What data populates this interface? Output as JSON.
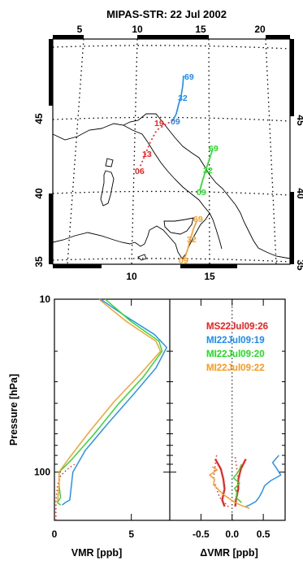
{
  "colors": {
    "MS": "#ff1a1a",
    "MI19": "#1a8cff",
    "MI20": "#22dd22",
    "MI22": "#ff9922"
  },
  "map": {
    "title": "MIPAS-STR: 22 Jul 2002",
    "lon_ticks_top": [
      "5",
      "10",
      "15",
      "20"
    ],
    "lon_ticks_bottom": [
      "10",
      "15"
    ],
    "lat_ticks_left": [
      "35",
      "40",
      "45"
    ],
    "lat_ticks_right": [
      "35",
      "40",
      "45"
    ],
    "annotations": [
      {
        "text": "69",
        "color_key": "MI19"
      },
      {
        "text": "32",
        "color_key": "MI19"
      },
      {
        "text": "09",
        "color_key": "MI19"
      },
      {
        "text": "19",
        "color_key": "MS"
      },
      {
        "text": "13",
        "color_key": "MS"
      },
      {
        "text": "06",
        "color_key": "MS"
      },
      {
        "text": "69",
        "color_key": "MI20"
      },
      {
        "text": "32",
        "color_key": "MI20"
      },
      {
        "text": "09",
        "color_key": "MI20"
      },
      {
        "text": "69",
        "color_key": "MI22"
      },
      {
        "text": "32",
        "color_key": "MI22"
      },
      {
        "text": "09",
        "color_key": "MI22"
      }
    ]
  },
  "chart_data": [
    {
      "type": "line",
      "panel": "left",
      "xlabel": "VMR [ppb]",
      "ylabel": "Pressure [hPa]",
      "xlim": [
        0,
        7.5
      ],
      "ylim": [
        190,
        10
      ],
      "y_scale": "log",
      "x_ticks": [
        "0",
        "5"
      ],
      "y_ticks": [
        "10",
        "100"
      ],
      "series": [
        {
          "color_key": "MS",
          "style": "dotted",
          "x": [
            0.1,
            0.1,
            0.1,
            0.2,
            0.4,
            0.8,
            1.3
          ],
          "y": [
            190,
            170,
            145,
            120,
            105,
            97,
            90
          ]
        },
        {
          "color_key": "MI19",
          "style": "solid",
          "x": [
            3.0,
            4.6,
            6.5,
            7.3,
            6.6,
            5.2,
            3.5,
            2.0,
            1.2,
            1.0,
            0.7,
            0.5
          ],
          "y": [
            10,
            12.5,
            16,
            19,
            25,
            35,
            52,
            75,
            100,
            145,
            150,
            155
          ]
        },
        {
          "color_key": "MI20",
          "style": "solid",
          "x": [
            3.3,
            5.0,
            6.8,
            7.0,
            5.8,
            4.2,
            2.6,
            1.1,
            0.3,
            0.3,
            0.4,
            0.2,
            0.4
          ],
          "y": [
            10,
            13.5,
            17.5,
            20,
            28,
            40,
            60,
            85,
            100,
            120,
            140,
            150,
            155
          ]
        },
        {
          "color_key": "MI22",
          "style": "solid",
          "x": [
            2.9,
            4.7,
            6.6,
            6.9,
            5.6,
            3.9,
            2.3,
            1.0,
            0.3,
            0.3,
            0.2
          ],
          "y": [
            10,
            13.5,
            17.5,
            20,
            27,
            39,
            58,
            82,
            100,
            120,
            150
          ]
        }
      ]
    },
    {
      "type": "line",
      "panel": "right",
      "xlabel": "ΔVMR [ppb]",
      "xlim": [
        -1.0,
        0.85
      ],
      "ylim": [
        190,
        10
      ],
      "y_scale": "log",
      "x_ticks": [
        "-0.5",
        "0.0",
        "0.5"
      ],
      "legend": [
        "MS22Jul09:26",
        "MI22Jul09:19",
        "MI22Jul09:20",
        "MI22Jul09:22"
      ],
      "legend_keys": [
        "MS",
        "MI19",
        "MI20",
        "MI22"
      ],
      "legend_position": "top-right",
      "series": [
        {
          "color_key": "MS",
          "style": "dotted",
          "x": [
            -0.25,
            -0.3,
            -0.2,
            -0.05
          ],
          "y": [
            80,
            110,
            140,
            160
          ]
        },
        {
          "color_key": "MS",
          "style": "dotted",
          "x": [
            0.05,
            0.1,
            0.05
          ],
          "y": [
            82,
            110,
            155
          ]
        },
        {
          "color_key": "MS",
          "style": "solid",
          "x": [
            -0.27,
            -0.18,
            -0.14,
            -0.12,
            -0.16,
            -0.12
          ],
          "y": [
            84,
            96,
            110,
            125,
            145,
            158
          ]
        },
        {
          "color_key": "MS",
          "style": "solid",
          "x": [
            0.22,
            0.14,
            0.1,
            0.1,
            0.06,
            0.05
          ],
          "y": [
            84,
            96,
            110,
            125,
            145,
            158
          ]
        },
        {
          "color_key": "MI19",
          "style": "solid",
          "x": [
            0.75,
            0.65,
            0.72,
            0.78,
            0.62,
            0.52,
            0.48,
            0.43,
            0.38,
            0.32,
            0.28,
            0.22
          ],
          "y": [
            80,
            88,
            96,
            104,
            112,
            120,
            130,
            140,
            148,
            152,
            155,
            158
          ]
        },
        {
          "color_key": "MI20",
          "style": "solid",
          "x": [
            0.15,
            0.12,
            0.08,
            0.02,
            0.12,
            0.04,
            0.08,
            0.06,
            0.15
          ],
          "y": [
            90,
            96,
            102,
            108,
            116,
            124,
            132,
            140,
            150
          ]
        },
        {
          "color_key": "MI22",
          "style": "solid",
          "x": [
            -0.32,
            -0.24,
            -0.36,
            -0.28,
            -0.3,
            -0.22,
            -0.15,
            -0.05,
            0.05,
            0.15,
            0.28
          ],
          "y": [
            93,
            97,
            104,
            110,
            118,
            126,
            134,
            142,
            150,
            156,
            162
          ]
        }
      ]
    }
  ]
}
